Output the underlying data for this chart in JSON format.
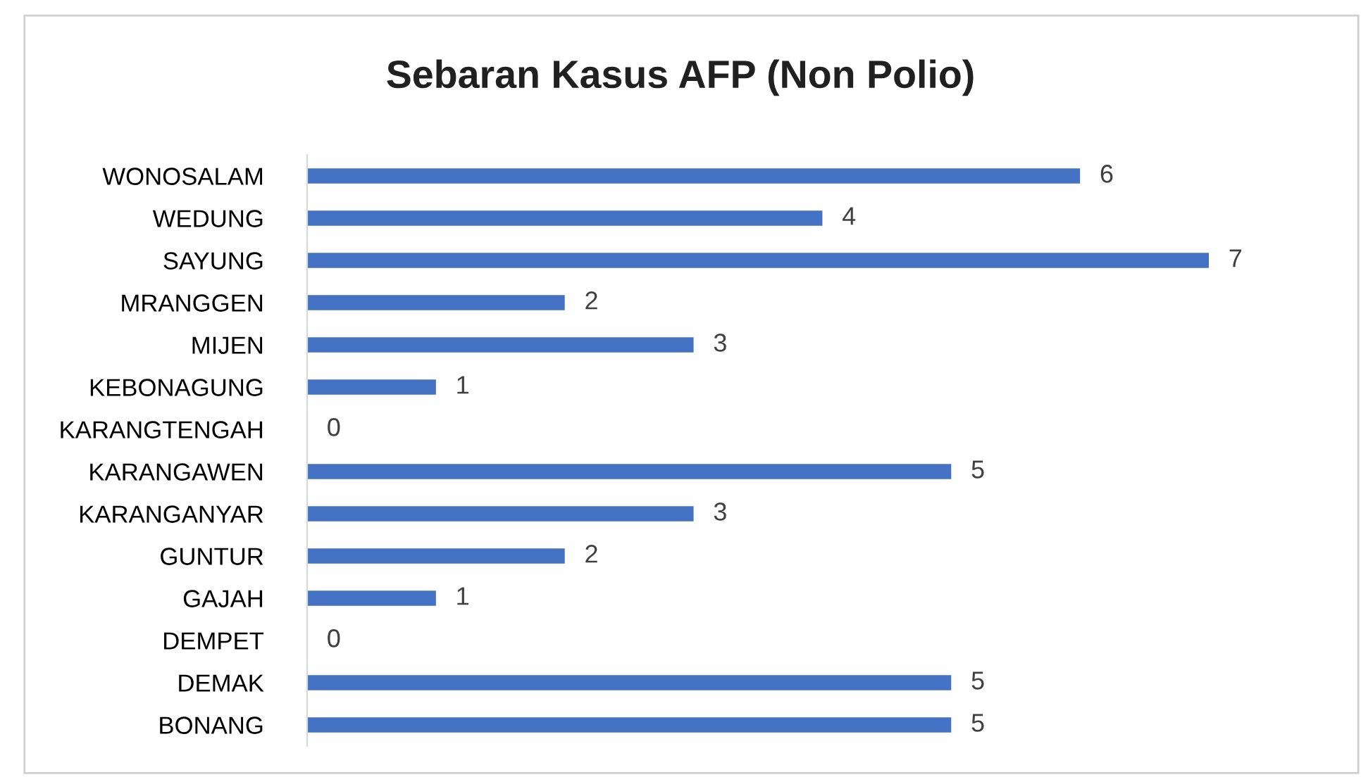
{
  "chart_data": {
    "type": "bar",
    "orientation": "horizontal",
    "title": "Sebaran Kasus AFP (Non Polio)",
    "categories": [
      "WONOSALAM",
      "WEDUNG",
      "SAYUNG",
      "MRANGGEN",
      "MIJEN",
      "KEBONAGUNG",
      "KARANGTENGAH",
      "KARANGAWEN",
      "KARANGANYAR",
      "GUNTUR",
      "GAJAH",
      "DEMPET",
      "DEMAK",
      "BONANG"
    ],
    "values": [
      6,
      4,
      7,
      2,
      3,
      1,
      0,
      5,
      3,
      2,
      1,
      0,
      5,
      5
    ],
    "color": "#4472c4",
    "data_labels": true,
    "grid": false,
    "legend": false,
    "tick_labels": "y"
  }
}
